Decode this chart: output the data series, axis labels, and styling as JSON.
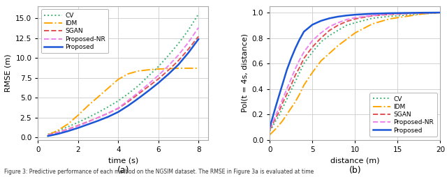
{
  "left_plot": {
    "xlabel": "time (s)",
    "ylabel": "RMSE (m)",
    "xlim": [
      0,
      8.5
    ],
    "ylim": [
      -0.3,
      16.5
    ],
    "yticks": [
      0.0,
      2.5,
      5.0,
      7.5,
      10.0,
      12.5,
      15.0
    ],
    "xticks": [
      0,
      2,
      4,
      6,
      8
    ],
    "lines": {
      "CV": {
        "color": "#3cb371",
        "linestyle": "dotted",
        "linewidth": 1.4
      },
      "IDM": {
        "color": "#ffa500",
        "linestyle": "dashdot",
        "linewidth": 1.4
      },
      "SGAN": {
        "color": "#e05050",
        "linestyle": "dashed",
        "linewidth": 1.4
      },
      "Proposed-NR": {
        "color": "#ee82ee",
        "linestyle": "dashed",
        "linewidth": 1.4
      },
      "Proposed": {
        "color": "#1a56d6",
        "linestyle": "solid",
        "linewidth": 1.8
      }
    },
    "CV_x": [
      0.5,
      1.0,
      1.5,
      2.0,
      2.5,
      3.0,
      3.5,
      4.0,
      4.5,
      5.0,
      5.5,
      6.0,
      6.5,
      7.0,
      7.5,
      8.0
    ],
    "CV_y": [
      0.4,
      0.85,
      1.35,
      1.9,
      2.5,
      3.15,
      3.85,
      4.6,
      5.5,
      6.5,
      7.7,
      8.9,
      10.3,
      11.8,
      13.5,
      15.5
    ],
    "IDM_x": [
      0.5,
      1.0,
      1.5,
      2.0,
      2.5,
      3.0,
      3.5,
      4.0,
      4.5,
      5.0,
      5.5,
      6.0,
      6.5,
      7.0,
      7.5,
      8.0
    ],
    "IDM_y": [
      0.3,
      0.9,
      1.7,
      2.8,
      4.0,
      5.1,
      6.2,
      7.3,
      8.0,
      8.35,
      8.5,
      8.6,
      8.65,
      8.7,
      8.7,
      8.7
    ],
    "SGAN_x": [
      0.5,
      1.0,
      1.5,
      2.0,
      2.5,
      3.0,
      3.5,
      4.0,
      4.5,
      5.0,
      5.5,
      6.0,
      6.5,
      7.0,
      7.5,
      8.0
    ],
    "SGAN_y": [
      0.3,
      0.65,
      1.05,
      1.5,
      2.0,
      2.5,
      3.05,
      3.65,
      4.5,
      5.45,
      6.4,
      7.35,
      8.45,
      9.65,
      11.1,
      12.7
    ],
    "ProposedNR_x": [
      0.5,
      1.0,
      1.5,
      2.0,
      2.5,
      3.0,
      3.5,
      4.0,
      4.5,
      5.0,
      5.5,
      6.0,
      6.5,
      7.0,
      7.5,
      8.0
    ],
    "ProposedNR_y": [
      0.28,
      0.62,
      1.0,
      1.45,
      1.95,
      2.5,
      3.05,
      3.7,
      4.65,
      5.65,
      6.7,
      7.8,
      9.0,
      10.35,
      11.95,
      13.8
    ],
    "Proposed_x": [
      0.5,
      1.0,
      1.5,
      2.0,
      2.5,
      3.0,
      3.5,
      4.0,
      4.5,
      5.0,
      5.5,
      6.0,
      6.5,
      7.0,
      7.5,
      8.0
    ],
    "Proposed_y": [
      0.18,
      0.45,
      0.8,
      1.2,
      1.65,
      2.1,
      2.6,
      3.2,
      4.0,
      4.9,
      5.85,
      6.85,
      7.95,
      9.15,
      10.65,
      12.35
    ]
  },
  "right_plot": {
    "xlabel": "distance (m)",
    "ylabel": "Pol(t = 4s, distance)",
    "xlim": [
      0,
      20
    ],
    "ylim": [
      0.0,
      1.05
    ],
    "yticks": [
      0.0,
      0.2,
      0.4,
      0.6,
      0.8,
      1.0
    ],
    "xticks": [
      0,
      5,
      10,
      15,
      20
    ],
    "lines": {
      "CV": {
        "color": "#3cb371",
        "linestyle": "dotted",
        "linewidth": 1.4
      },
      "IDM": {
        "color": "#ffa500",
        "linestyle": "dashdot",
        "linewidth": 1.4
      },
      "SGAN": {
        "color": "#e05050",
        "linestyle": "dashed",
        "linewidth": 1.4
      },
      "Proposed-NR": {
        "color": "#ee82ee",
        "linestyle": "dashed",
        "linewidth": 1.4
      },
      "Proposed": {
        "color": "#1a56d6",
        "linestyle": "solid",
        "linewidth": 1.8
      }
    },
    "CV_x": [
      0,
      0.3,
      0.6,
      1.0,
      1.5,
      2.0,
      2.5,
      3.0,
      3.5,
      4.0,
      5.0,
      6.0,
      7.0,
      8.0,
      9.0,
      10.0,
      12.0,
      14.0,
      16.0,
      18.0,
      20.0
    ],
    "CV_y": [
      0.07,
      0.1,
      0.14,
      0.18,
      0.25,
      0.32,
      0.39,
      0.46,
      0.53,
      0.6,
      0.69,
      0.77,
      0.82,
      0.86,
      0.9,
      0.92,
      0.955,
      0.97,
      0.98,
      0.99,
      1.0
    ],
    "IDM_x": [
      0,
      0.3,
      0.6,
      1.0,
      1.5,
      2.0,
      2.5,
      3.0,
      3.5,
      4.0,
      5.0,
      6.0,
      7.0,
      8.0,
      9.0,
      10.0,
      12.0,
      14.0,
      16.0,
      18.0,
      20.0
    ],
    "IDM_y": [
      0.04,
      0.06,
      0.08,
      0.11,
      0.15,
      0.2,
      0.25,
      0.3,
      0.36,
      0.43,
      0.53,
      0.62,
      0.68,
      0.74,
      0.79,
      0.84,
      0.91,
      0.95,
      0.97,
      0.99,
      1.0
    ],
    "SGAN_x": [
      0,
      0.3,
      0.6,
      1.0,
      1.5,
      2.0,
      2.5,
      3.0,
      3.5,
      4.0,
      5.0,
      6.0,
      7.0,
      8.0,
      9.0,
      10.0,
      12.0,
      14.0,
      16.0,
      18.0,
      20.0
    ],
    "SGAN_y": [
      0.08,
      0.12,
      0.16,
      0.21,
      0.29,
      0.36,
      0.43,
      0.51,
      0.57,
      0.64,
      0.73,
      0.8,
      0.86,
      0.9,
      0.93,
      0.95,
      0.975,
      0.985,
      0.992,
      0.997,
      1.0
    ],
    "ProposedNR_x": [
      0,
      0.3,
      0.6,
      1.0,
      1.5,
      2.0,
      2.5,
      3.0,
      3.5,
      4.0,
      5.0,
      6.0,
      7.0,
      8.0,
      9.0,
      10.0,
      12.0,
      14.0,
      16.0,
      18.0,
      20.0
    ],
    "ProposedNR_y": [
      0.09,
      0.13,
      0.18,
      0.24,
      0.32,
      0.4,
      0.48,
      0.56,
      0.63,
      0.69,
      0.78,
      0.84,
      0.89,
      0.92,
      0.945,
      0.96,
      0.977,
      0.988,
      0.993,
      0.997,
      1.0
    ],
    "Proposed_x": [
      0,
      0.3,
      0.6,
      1.0,
      1.5,
      2.0,
      2.5,
      3.0,
      3.5,
      4.0,
      5.0,
      6.0,
      7.0,
      8.0,
      9.0,
      10.0,
      12.0,
      14.0,
      16.0,
      18.0,
      20.0
    ],
    "Proposed_y": [
      0.1,
      0.17,
      0.24,
      0.33,
      0.44,
      0.55,
      0.64,
      0.72,
      0.79,
      0.85,
      0.905,
      0.935,
      0.955,
      0.968,
      0.977,
      0.983,
      0.991,
      0.995,
      0.997,
      0.999,
      1.0
    ]
  },
  "figure_label_a": "(a)",
  "figure_label_b": "(b)",
  "caption": "Figure 3: Predictive performance of each method on the NGSIM dataset. The RMSE in Figure 3a is evaluated at time"
}
